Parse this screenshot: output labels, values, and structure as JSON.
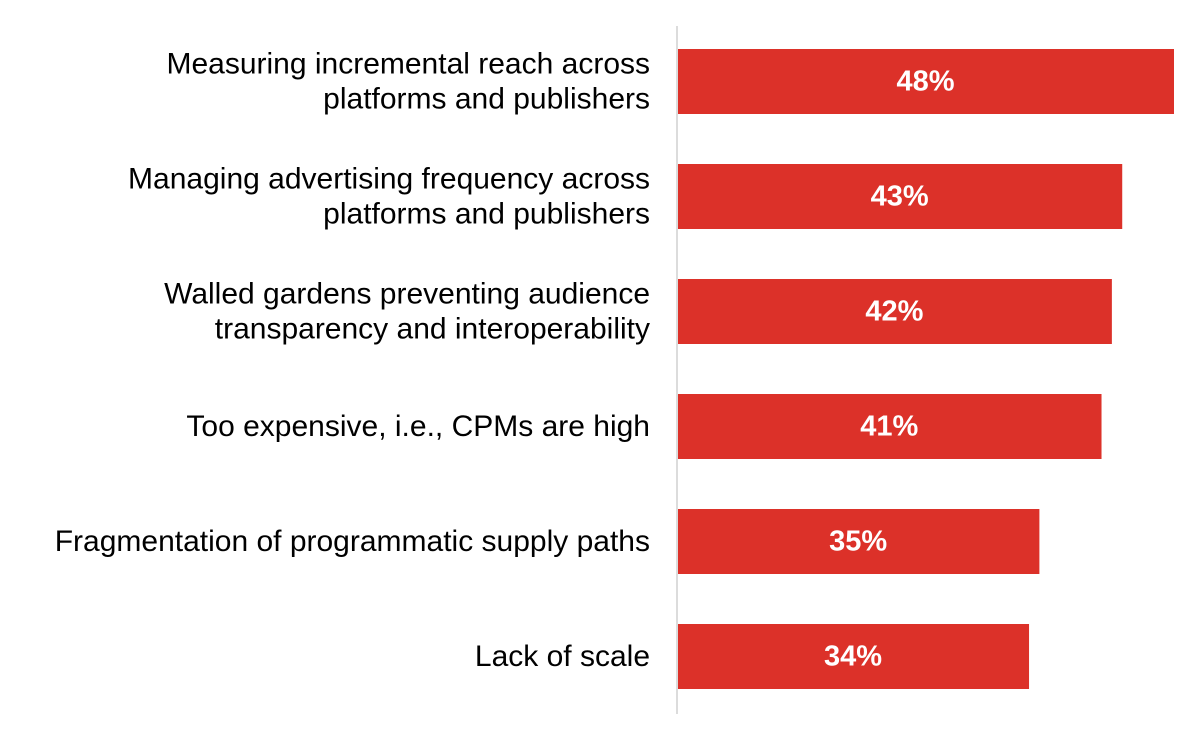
{
  "chart_data": {
    "type": "bar",
    "orientation": "horizontal",
    "categories": [
      [
        "Measuring incremental reach across",
        "platforms and publishers"
      ],
      [
        "Managing advertising frequency across",
        "platforms and publishers"
      ],
      [
        "Walled gardens preventing audience",
        "transparency and interoperability"
      ],
      [
        "Too expensive, i.e., CPMs are high"
      ],
      [
        "Fragmentation of programmatic supply paths"
      ],
      [
        "Lack of scale"
      ]
    ],
    "values": [
      48,
      43,
      42,
      41,
      35,
      34
    ],
    "value_labels": [
      "48%",
      "43%",
      "42%",
      "41%",
      "35%",
      "34%"
    ],
    "xlim": [
      0,
      48
    ],
    "title": "",
    "xlabel": "",
    "ylabel": "",
    "grid": false,
    "legend": "none",
    "bar_color": "#dc3129",
    "axis_color": "#d0d0d0"
  }
}
